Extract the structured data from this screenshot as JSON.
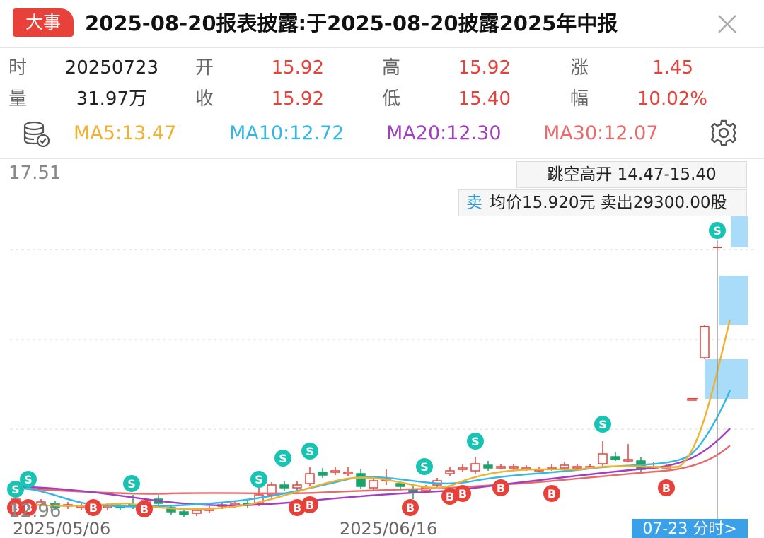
{
  "header": {
    "badge": "大事",
    "title": "2025-08-20报表披露:于2025-08-20披露2025年中报"
  },
  "stats": {
    "time_label": "时",
    "time_value": "20250723",
    "open_label": "开",
    "open_value": "15.92",
    "high_label": "高",
    "high_value": "15.92",
    "change_label": "涨",
    "change_value": "1.45",
    "volume_label": "量",
    "volume_value": "31.97万",
    "close_label": "收",
    "close_value": "15.92",
    "low_label": "低",
    "low_value": "15.40",
    "pct_label": "幅",
    "pct_value": "10.02%"
  },
  "ma": {
    "ma5": "MA5:13.47",
    "ma10": "MA10:12.72",
    "ma20": "MA20:12.30",
    "ma30": "MA30:12.07"
  },
  "colors": {
    "up": "#e8413a",
    "down": "#1aa36a",
    "ma5": "#f0b030",
    "ma10": "#33b8e6",
    "ma20": "#a23fc0",
    "ma30": "#e86a6a",
    "signal_s": "#17c3b2",
    "signal_b": "#e8413a",
    "volume_bar": "#a8dcf8"
  },
  "chart": {
    "y_max_label": "17.51",
    "y_min_label": "12.96",
    "gap_notice": "跳空高开 14.47-15.40",
    "sell_tag": "卖",
    "sell_detail": "均价15.920元 卖出29300.00股",
    "date_left": "2025/05/06",
    "date_mid": "2025/06/16",
    "fenshi_button": "07-23 分时>"
  },
  "chart_data": {
    "type": "candlestick",
    "ylim": [
      12.96,
      17.51
    ],
    "x_labels": [
      "2025/05/06",
      "2025/06/16"
    ],
    "series": [
      {
        "name": "MA5",
        "value": 13.47
      },
      {
        "name": "MA10",
        "value": 12.72
      },
      {
        "name": "MA20",
        "value": 12.3
      },
      {
        "name": "MA30",
        "value": 12.07
      }
    ],
    "last_bar": {
      "date": "20250723",
      "open": 15.92,
      "high": 15.92,
      "low": 15.4,
      "close": 15.92
    }
  }
}
